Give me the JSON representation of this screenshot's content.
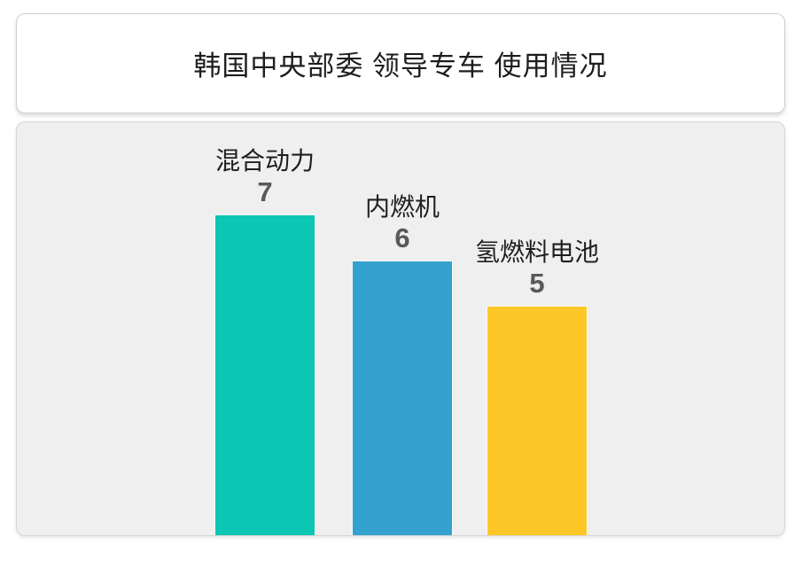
{
  "title": "韩国中央部委 领导专车 使用情况",
  "chart_data": {
    "type": "bar",
    "title": "韩国中央部委 领导专车 使用情况",
    "categories": [
      "混合动力",
      "内燃机",
      "氢燃料电池"
    ],
    "values": [
      7,
      6,
      5
    ],
    "colors": [
      "#0ac6b2",
      "#33a2ce",
      "#fdc727"
    ],
    "value_label_color": "#595959",
    "category_label_color": "#1f1f1f",
    "panel_background": "#f0efef",
    "ylim": [
      0,
      7
    ],
    "grid": false,
    "legend": "none",
    "axes_shown": false,
    "orientation": "vertical",
    "value_labels_position": "above-bar"
  }
}
